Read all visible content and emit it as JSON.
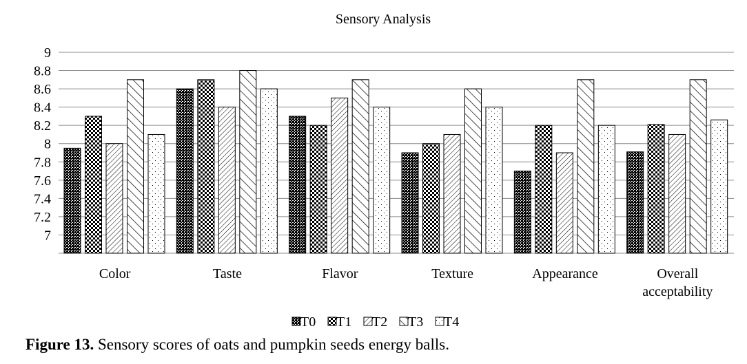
{
  "chart_data": {
    "type": "bar",
    "title": "Sensory Analysis",
    "categories": [
      "Color",
      "Taste",
      "Flavor",
      "Texture",
      "Appearance",
      "Overall acceptability"
    ],
    "series": [
      {
        "name": "T0",
        "values": [
          7.95,
          8.6,
          8.3,
          7.9,
          7.7,
          7.91
        ]
      },
      {
        "name": "T1",
        "values": [
          8.3,
          8.7,
          8.2,
          8.0,
          8.2,
          8.21
        ]
      },
      {
        "name": "T2",
        "values": [
          8.0,
          8.4,
          8.5,
          8.1,
          7.9,
          8.1
        ]
      },
      {
        "name": "T3",
        "values": [
          8.7,
          8.8,
          8.7,
          8.6,
          8.7,
          8.7
        ]
      },
      {
        "name": "T4",
        "values": [
          8.1,
          8.6,
          8.4,
          8.4,
          8.2,
          8.26
        ]
      }
    ],
    "yticks": [
      "7",
      "7.2",
      "7.4",
      "7.6",
      "7.8",
      "8",
      "8.2",
      "8.4",
      "8.6",
      "8.8",
      "9"
    ],
    "ylim": [
      6.8,
      9
    ],
    "grid": true,
    "legend_position": "bottom",
    "patterns": [
      "dense-dots-dark",
      "coarse-dots",
      "fine-diagonal",
      "wide-diagonal",
      "sparse-dots"
    ]
  },
  "caption": {
    "label": "Figure 13.",
    "text": " Sensory scores of oats and pumpkin seeds energy balls."
  }
}
